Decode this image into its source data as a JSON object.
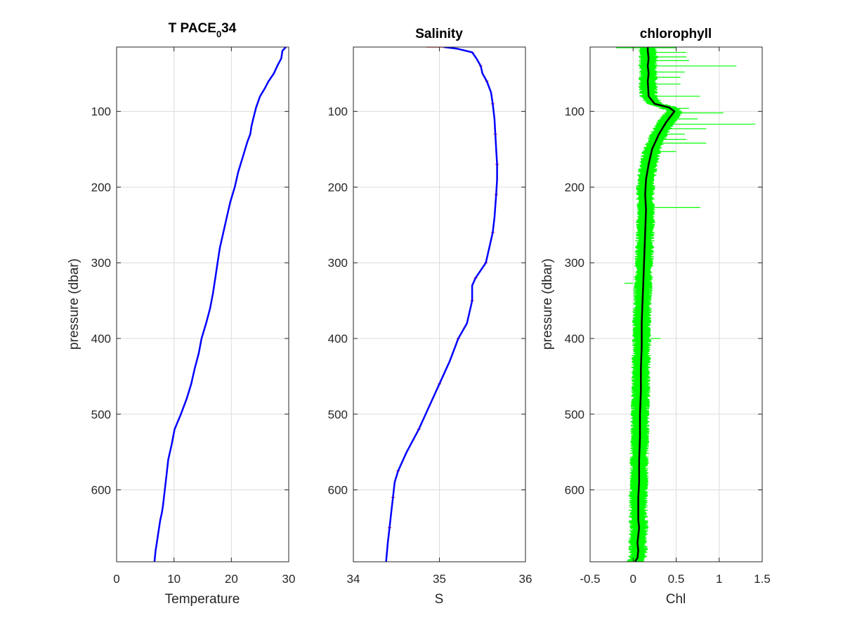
{
  "chart_data": [
    {
      "type": "line",
      "title_main": "T PACE",
      "title_sub": "0",
      "title_tail": "34",
      "xlabel": "Temperature",
      "ylabel": "pressure (dbar)",
      "xlim": [
        0,
        30
      ],
      "ylim": [
        15,
        695
      ],
      "y_reversed": true,
      "grid": true,
      "xticks": [
        0,
        10,
        20,
        30
      ],
      "xtick_labels": [
        "0",
        "10",
        "20",
        "30"
      ],
      "yticks": [
        100,
        200,
        300,
        400,
        500,
        600
      ],
      "ytick_labels": [
        "100",
        "200",
        "300",
        "400",
        "500",
        "600"
      ],
      "series": [
        {
          "color": "#0000ff",
          "x": [
            29.5,
            28.9,
            28.7,
            28.0,
            27.4,
            26.5,
            25.8,
            25.0,
            24.3,
            23.8,
            23.5,
            23.3,
            22.8,
            22.0,
            21.2,
            20.6,
            19.8,
            19.2,
            18.6,
            18.0,
            17.6,
            17.2,
            16.8,
            16.3,
            15.6,
            14.8,
            14.3,
            13.6,
            13.0,
            12.2,
            11.2,
            10.1,
            9.6,
            9.0,
            8.7,
            8.4,
            8.1,
            7.9,
            7.6,
            7.2,
            7.0,
            6.8,
            6.6
          ],
          "y": [
            15,
            20,
            30,
            40,
            50,
            60,
            70,
            80,
            95,
            110,
            120,
            130,
            140,
            160,
            180,
            200,
            220,
            240,
            260,
            280,
            300,
            320,
            340,
            360,
            380,
            400,
            420,
            440,
            460,
            480,
            500,
            520,
            540,
            560,
            580,
            600,
            620,
            630,
            640,
            660,
            670,
            680,
            695
          ]
        }
      ]
    },
    {
      "type": "line",
      "title": "Salinity",
      "xlabel": "S",
      "xlim": [
        34,
        36
      ],
      "ylim": [
        15,
        695
      ],
      "y_reversed": true,
      "grid": true,
      "xticks": [
        34,
        35,
        36
      ],
      "xtick_labels": [
        "34",
        "35",
        "36"
      ],
      "yticks": [
        100,
        200,
        300,
        400,
        500,
        600
      ],
      "ytick_labels": [
        "100",
        "200",
        "300",
        "400",
        "500",
        "600"
      ],
      "series": [
        {
          "color": "#ff0000",
          "x": [
            34.85,
            35.05,
            35.2,
            35.38,
            35.43,
            35.48,
            35.5,
            35.55,
            35.6,
            35.62,
            35.64,
            35.65,
            35.66,
            35.67,
            35.67,
            35.66,
            35.64,
            35.62,
            35.58,
            35.54,
            35.48,
            35.42,
            35.38,
            35.38,
            35.32,
            35.22,
            35.12,
            35.0,
            34.88,
            34.76,
            34.62,
            34.52,
            34.48,
            34.46,
            34.44,
            34.42,
            34.4,
            34.38
          ],
          "y": [
            15,
            15,
            17,
            22,
            30,
            40,
            50,
            60,
            75,
            90,
            110,
            130,
            150,
            170,
            190,
            210,
            240,
            260,
            280,
            300,
            310,
            320,
            330,
            350,
            380,
            400,
            430,
            460,
            490,
            520,
            550,
            575,
            590,
            610,
            630,
            650,
            670,
            695
          ]
        },
        {
          "color": "#0000ff",
          "x": [
            35.05,
            35.2,
            35.38,
            35.43,
            35.48,
            35.5,
            35.55,
            35.6,
            35.62,
            35.64,
            35.65,
            35.66,
            35.67,
            35.67,
            35.66,
            35.64,
            35.62,
            35.58,
            35.54,
            35.48,
            35.42,
            35.38,
            35.38,
            35.32,
            35.22,
            35.12,
            35.0,
            34.88,
            34.76,
            34.62,
            34.52,
            34.48,
            34.46,
            34.44,
            34.42,
            34.4,
            34.38
          ],
          "y": [
            15,
            17,
            22,
            30,
            40,
            50,
            60,
            75,
            90,
            110,
            130,
            150,
            170,
            190,
            210,
            240,
            260,
            280,
            300,
            310,
            320,
            330,
            350,
            380,
            400,
            430,
            460,
            490,
            520,
            550,
            575,
            590,
            610,
            630,
            650,
            670,
            695
          ]
        }
      ]
    },
    {
      "type": "line",
      "title": "chlorophyll",
      "xlabel": "Chl",
      "ylabel": "pressure (dbar)",
      "xlim": [
        -0.5,
        1.5
      ],
      "ylim": [
        15,
        695
      ],
      "y_reversed": true,
      "grid": true,
      "xticks": [
        -0.5,
        0,
        0.5,
        1,
        1.5
      ],
      "xtick_labels": [
        "-0.5",
        "0",
        "0.5",
        "1",
        "1.5"
      ],
      "yticks": [
        100,
        200,
        300,
        400,
        500,
        600
      ],
      "ytick_labels": [
        "100",
        "200",
        "300",
        "400",
        "500",
        "600"
      ],
      "series": [
        {
          "color": "#00ff00",
          "band_halfwidth": 0.09,
          "spikes": [
            {
              "y": 16,
              "x1": -0.2,
              "x2": 0.5
            },
            {
              "y": 22,
              "x1": 0.2,
              "x2": 0.62
            },
            {
              "y": 28,
              "x1": 0.2,
              "x2": 0.62
            },
            {
              "y": 33,
              "x1": 0.2,
              "x2": 0.65
            },
            {
              "y": 40,
              "x1": 0.2,
              "x2": 1.2
            },
            {
              "y": 48,
              "x1": 0.2,
              "x2": 0.6
            },
            {
              "y": 55,
              "x1": 0.2,
              "x2": 0.55
            },
            {
              "y": 64,
              "x1": 0.2,
              "x2": 0.55
            },
            {
              "y": 80,
              "x1": 0.2,
              "x2": 0.78
            },
            {
              "y": 96,
              "x1": 0.3,
              "x2": 0.65
            },
            {
              "y": 102,
              "x1": 0.45,
              "x2": 1.05
            },
            {
              "y": 110,
              "x1": 0.45,
              "x2": 0.75
            },
            {
              "y": 117,
              "x1": 0.4,
              "x2": 1.42
            },
            {
              "y": 123,
              "x1": 0.35,
              "x2": 0.85
            },
            {
              "y": 130,
              "x1": 0.3,
              "x2": 0.6
            },
            {
              "y": 137,
              "x1": 0.3,
              "x2": 0.62
            },
            {
              "y": 142,
              "x1": 0.25,
              "x2": 0.85
            },
            {
              "y": 153,
              "x1": 0.2,
              "x2": 0.5
            },
            {
              "y": 227,
              "x1": 0.25,
              "x2": 0.78
            },
            {
              "y": 327,
              "x1": -0.1,
              "x2": 0.0
            },
            {
              "y": 400,
              "x1": 0.2,
              "x2": 0.32
            }
          ]
        },
        {
          "color": "#000000",
          "x": [
            0.17,
            0.17,
            0.18,
            0.17,
            0.18,
            0.17,
            0.18,
            0.25,
            0.42,
            0.48,
            0.38,
            0.3,
            0.22,
            0.18,
            0.15,
            0.14,
            0.15,
            0.14,
            0.13,
            0.12,
            0.11,
            0.1,
            0.1,
            0.09,
            0.09,
            0.08,
            0.08,
            0.07,
            0.07,
            0.06,
            0.06,
            0.07,
            0.06,
            0.05,
            0.06,
            0.05,
            0.02
          ],
          "y": [
            15,
            20,
            30,
            40,
            50,
            60,
            80,
            90,
            95,
            100,
            115,
            130,
            150,
            170,
            190,
            210,
            230,
            260,
            290,
            320,
            350,
            380,
            410,
            440,
            470,
            500,
            530,
            560,
            590,
            610,
            640,
            650,
            660,
            670,
            680,
            690,
            695
          ]
        }
      ]
    }
  ]
}
